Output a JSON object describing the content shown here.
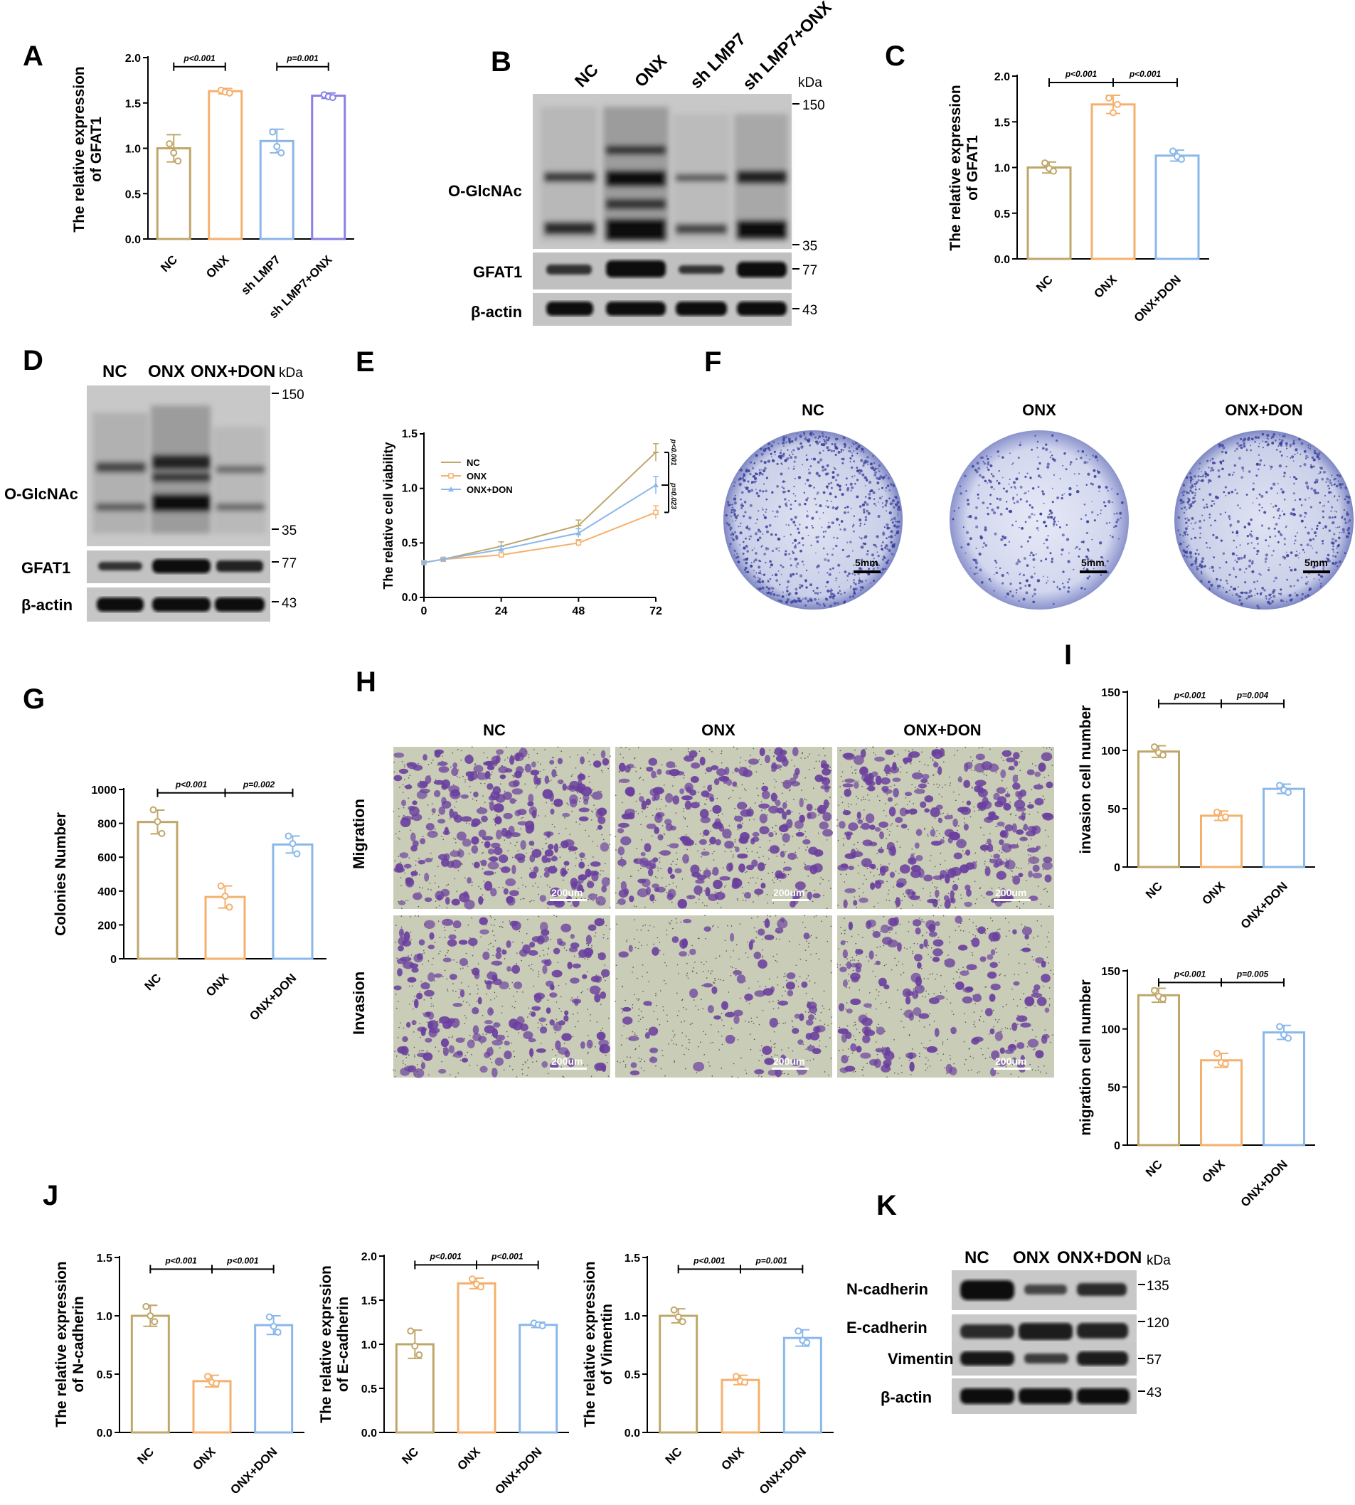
{
  "colors": {
    "nc": "#bfa76a",
    "onx": "#f5b06c",
    "sh": "#8bb5e8",
    "shonx": "#8a7fe6",
    "don": "#8ab8ea"
  },
  "panels": {
    "A": "A",
    "B": "B",
    "C": "C",
    "D": "D",
    "E": "E",
    "F": "F",
    "G": "G",
    "H": "H",
    "I": "I",
    "J": "J",
    "K": "K"
  },
  "chart_data": [
    {
      "id": "A",
      "type": "bar",
      "ylabel": [
        "The relative expression",
        "of GFAT1"
      ],
      "ylim": [
        0,
        2.0
      ],
      "ticks": [
        0.0,
        0.5,
        1.0,
        1.5,
        2.0
      ],
      "tick_labels": [
        "0.0",
        "0.5",
        "1.0",
        "1.5",
        "2.0"
      ],
      "categories": [
        "NC",
        "ONX",
        "sh LMP7",
        "sh LMP7+ONX"
      ],
      "values": [
        1.0,
        1.63,
        1.08,
        1.58
      ],
      "errors": [
        0.15,
        0.03,
        0.13,
        0.03
      ],
      "points": [
        [
          1.05,
          0.95,
          0.86
        ],
        [
          1.64,
          1.62,
          1.61
        ],
        [
          1.18,
          1.02,
          0.95
        ],
        [
          1.59,
          1.57,
          1.56
        ]
      ],
      "colorkeys": [
        "nc",
        "onx",
        "sh",
        "shonx"
      ],
      "brackets": [
        {
          "from": 0,
          "to": 1,
          "label": "p<0.001",
          "y": 1.9
        },
        {
          "from": 2,
          "to": 3,
          "label": "p=0.001",
          "y": 1.9
        }
      ]
    },
    {
      "id": "C",
      "type": "bar",
      "ylabel": [
        "The relative expression",
        "of GFAT1"
      ],
      "ylim": [
        0,
        2.0
      ],
      "ticks": [
        0.0,
        0.5,
        1.0,
        1.5,
        2.0
      ],
      "tick_labels": [
        "0.0",
        "0.5",
        "1.0",
        "1.5",
        "2.0"
      ],
      "categories": [
        "NC",
        "ONX",
        "ONX+DON"
      ],
      "values": [
        1.0,
        1.69,
        1.13
      ],
      "errors": [
        0.06,
        0.1,
        0.06
      ],
      "points": [
        [
          1.05,
          0.99,
          0.96
        ],
        [
          1.76,
          1.6,
          1.69
        ],
        [
          1.18,
          1.12,
          1.09
        ]
      ],
      "colorkeys": [
        "nc",
        "onx",
        "don"
      ],
      "brackets": [
        {
          "from": 0,
          "to": 1,
          "label": "p<0.001",
          "y": 1.93
        },
        {
          "from": 1,
          "to": 2,
          "label": "p<0.001",
          "y": 1.93
        }
      ]
    },
    {
      "id": "E",
      "type": "line",
      "ylabel": [
        "The relative cell viability"
      ],
      "xlim": [
        0,
        72
      ],
      "ylim": [
        0,
        1.5
      ],
      "xticks": [
        0,
        24,
        48,
        72
      ],
      "xtick_labels": [
        "0",
        "24",
        "48",
        "72"
      ],
      "ticks": [
        0.0,
        0.5,
        1.0,
        1.5
      ],
      "tick_labels": [
        "0.0",
        "0.5",
        "1.0",
        "1.5"
      ],
      "x": [
        0,
        6,
        24,
        48,
        72
      ],
      "series": [
        {
          "name": "NC",
          "colorkey": "nc",
          "values": [
            0.32,
            0.35,
            0.47,
            0.66,
            1.33
          ],
          "errors": [
            0.01,
            0.01,
            0.04,
            0.05,
            0.08
          ]
        },
        {
          "name": "ONX",
          "colorkey": "onx",
          "values": [
            0.32,
            0.35,
            0.39,
            0.5,
            0.78
          ],
          "errors": [
            0.01,
            0.01,
            0.02,
            0.03,
            0.06
          ]
        },
        {
          "name": "ONX+DON",
          "colorkey": "don",
          "values": [
            0.32,
            0.35,
            0.44,
            0.59,
            1.03
          ],
          "errors": [
            0.01,
            0.01,
            0.03,
            0.04,
            0.08
          ]
        }
      ],
      "annotations": [
        "p<0.001",
        "p=0.023"
      ]
    },
    {
      "id": "G",
      "type": "bar",
      "ylabel": [
        "Colonies Number"
      ],
      "ylim": [
        0,
        1000
      ],
      "ticks": [
        0,
        200,
        400,
        600,
        800,
        1000
      ],
      "tick_labels": [
        "0",
        "200",
        "400",
        "600",
        "800",
        "1000"
      ],
      "categories": [
        "NC",
        "ONX",
        "ONX+DON"
      ],
      "values": [
        808,
        365,
        675
      ],
      "errors": [
        70,
        65,
        50
      ],
      "points": [
        [
          880,
          810,
          740
        ],
        [
          430,
          370,
          305
        ],
        [
          725,
          680,
          620
        ]
      ],
      "colorkeys": [
        "nc",
        "onx",
        "don"
      ],
      "brackets": [
        {
          "from": 0,
          "to": 1,
          "label": "p<0.001",
          "y": 980
        },
        {
          "from": 1,
          "to": 2,
          "label": "p=0.002",
          "y": 980
        }
      ]
    },
    {
      "id": "I1",
      "type": "bar",
      "ylabel": [
        "invasion cell number"
      ],
      "ylim": [
        0,
        150
      ],
      "ticks": [
        0,
        50,
        100,
        150
      ],
      "tick_labels": [
        "0",
        "50",
        "100",
        "150"
      ],
      "categories": [
        "NC",
        "ONX",
        "ONX+DON"
      ],
      "values": [
        99,
        44,
        67
      ],
      "errors": [
        5,
        4,
        4
      ],
      "points": [
        [
          103,
          98,
          96
        ],
        [
          47,
          42,
          43
        ],
        [
          70,
          66,
          64
        ]
      ],
      "colorkeys": [
        "nc",
        "onx",
        "don"
      ],
      "brackets": [
        {
          "from": 0,
          "to": 1,
          "label": "p<0.001",
          "y": 140
        },
        {
          "from": 1,
          "to": 2,
          "label": "p=0.004",
          "y": 140
        }
      ]
    },
    {
      "id": "I2",
      "type": "bar",
      "ylabel": [
        "migration cell number"
      ],
      "ylim": [
        0,
        150
      ],
      "ticks": [
        0,
        50,
        100,
        150
      ],
      "tick_labels": [
        "0",
        "50",
        "100",
        "150"
      ],
      "categories": [
        "NC",
        "ONX",
        "ONX+DON"
      ],
      "values": [
        129,
        73,
        97
      ],
      "errors": [
        6,
        6,
        6
      ],
      "points": [
        [
          133,
          128,
          126
        ],
        [
          79,
          71,
          70
        ],
        [
          102,
          95,
          92
        ]
      ],
      "colorkeys": [
        "nc",
        "onx",
        "don"
      ],
      "brackets": [
        {
          "from": 0,
          "to": 1,
          "label": "p<0.001",
          "y": 140
        },
        {
          "from": 1,
          "to": 2,
          "label": "p=0.005",
          "y": 140
        }
      ]
    },
    {
      "id": "J1",
      "type": "bar",
      "ylabel": [
        "The relative expression",
        "of N-cadherin"
      ],
      "ylim": [
        0,
        1.5
      ],
      "ticks": [
        0.0,
        0.5,
        1.0,
        1.5
      ],
      "tick_labels": [
        "0.0",
        "0.5",
        "1.0",
        "1.5"
      ],
      "categories": [
        "NC",
        "ONX",
        "ONX+DON"
      ],
      "values": [
        1.0,
        0.44,
        0.92
      ],
      "errors": [
        0.09,
        0.05,
        0.08
      ],
      "points": [
        [
          1.08,
          1.0,
          0.95
        ],
        [
          0.48,
          0.43,
          0.42
        ],
        [
          0.99,
          0.91,
          0.86
        ]
      ],
      "colorkeys": [
        "nc",
        "onx",
        "don"
      ],
      "brackets": [
        {
          "from": 0,
          "to": 1,
          "label": "p<0.001",
          "y": 1.4
        },
        {
          "from": 1,
          "to": 2,
          "label": "p<0.001",
          "y": 1.4
        }
      ]
    },
    {
      "id": "J2",
      "type": "bar",
      "ylabel": [
        "The relative exprssion",
        "of E-cadherin"
      ],
      "ylim": [
        0.0,
        2.0
      ],
      "ticks": [
        0.0,
        0.5,
        1.0,
        1.5,
        2.0
      ],
      "tick_labels": [
        "0.0",
        "0.5",
        "1.0",
        "1.5",
        "2.0"
      ],
      "categories": [
        "NC",
        "ONX",
        "ONX+DON"
      ],
      "values": [
        1.0,
        1.69,
        1.22
      ],
      "errors": [
        0.16,
        0.06,
        0.03
      ],
      "points": [
        [
          1.15,
          0.98,
          0.88
        ],
        [
          1.74,
          1.68,
          1.65
        ],
        [
          1.24,
          1.22,
          1.21
        ]
      ],
      "colorkeys": [
        "nc",
        "onx",
        "don"
      ],
      "brackets": [
        {
          "from": 0,
          "to": 1,
          "label": "p<0.001",
          "y": 1.9
        },
        {
          "from": 1,
          "to": 2,
          "label": "p<0.001",
          "y": 1.9
        }
      ]
    },
    {
      "id": "J3",
      "type": "bar",
      "ylabel": [
        "The relative expression",
        "of Vimentin"
      ],
      "ylim": [
        0,
        1.5
      ],
      "ticks": [
        0.0,
        0.5,
        1.0,
        1.5
      ],
      "tick_labels": [
        "0.0",
        "0.5",
        "1.0",
        "1.5"
      ],
      "categories": [
        "NC",
        "ONX",
        "ONX+DON"
      ],
      "values": [
        1.0,
        0.45,
        0.81
      ],
      "errors": [
        0.06,
        0.04,
        0.07
      ],
      "points": [
        [
          1.05,
          0.99,
          0.95
        ],
        [
          0.48,
          0.44,
          0.43
        ],
        [
          0.87,
          0.79,
          0.77
        ]
      ],
      "colorkeys": [
        "nc",
        "onx",
        "don"
      ],
      "brackets": [
        {
          "from": 0,
          "to": 1,
          "label": "p<0.001",
          "y": 1.4
        },
        {
          "from": 1,
          "to": 2,
          "label": "p=0.001",
          "y": 1.4
        }
      ]
    }
  ],
  "blot_B": {
    "lanes": [
      "NC",
      "ONX",
      "sh LMP7",
      "sh LMP7+ONX"
    ],
    "kda": "kDa",
    "labels": [
      "O-GlcNAc",
      "GFAT1",
      "β-actin"
    ],
    "markers": [
      "150",
      "35",
      "77",
      "43"
    ]
  },
  "blot_D": {
    "lanes": [
      "NC",
      "ONX",
      "ONX+DON"
    ],
    "kda": "kDa",
    "labels": [
      "O-GlcNAc",
      "GFAT1",
      "β-actin"
    ],
    "markers": [
      "150",
      "35",
      "77",
      "43"
    ]
  },
  "blot_K": {
    "lanes": [
      "NC",
      "ONX",
      "ONX+DON"
    ],
    "kda": "kDa",
    "labels": [
      "N-cadherin",
      "E-cadherin",
      "Vimentin",
      "β-actin"
    ],
    "markers": [
      "135",
      "120",
      "57",
      "43"
    ]
  },
  "plates_F": {
    "titles": [
      "NC",
      "ONX",
      "ONX+DON"
    ],
    "scale": "5mm"
  },
  "micro_H": {
    "columns": [
      "NC",
      "ONX",
      "ONX+DON"
    ],
    "rows": [
      "Migration",
      "Invasion"
    ],
    "scale": "200um"
  }
}
